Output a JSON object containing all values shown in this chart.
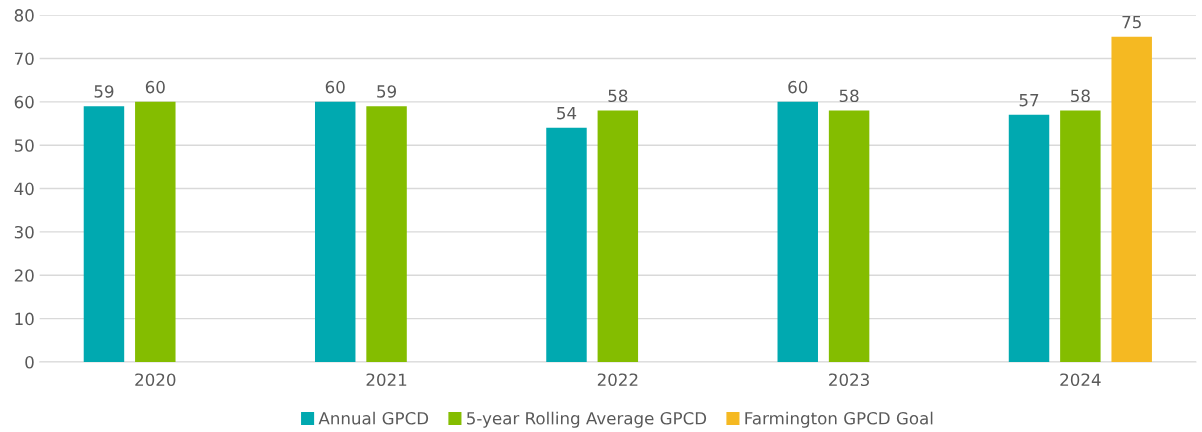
{
  "chart_data": {
    "type": "bar",
    "categories": [
      "2020",
      "2021",
      "2022",
      "2023",
      "2024"
    ],
    "series": [
      {
        "name": "Annual GPCD",
        "color": "#00a9b0",
        "values": [
          59,
          60,
          54,
          60,
          57
        ]
      },
      {
        "name": "5-year Rolling Average GPCD",
        "color": "#84bd00",
        "values": [
          60,
          59,
          58,
          58,
          58
        ]
      },
      {
        "name": "Farmington GPCD Goal",
        "color": "#f5b922",
        "values": [
          null,
          null,
          null,
          null,
          75
        ]
      }
    ],
    "ylim": [
      0,
      80
    ],
    "yticks": [
      0,
      10,
      20,
      30,
      40,
      50,
      60,
      70,
      80
    ],
    "grid": "y",
    "legend": "bottom",
    "data_labels": true
  }
}
